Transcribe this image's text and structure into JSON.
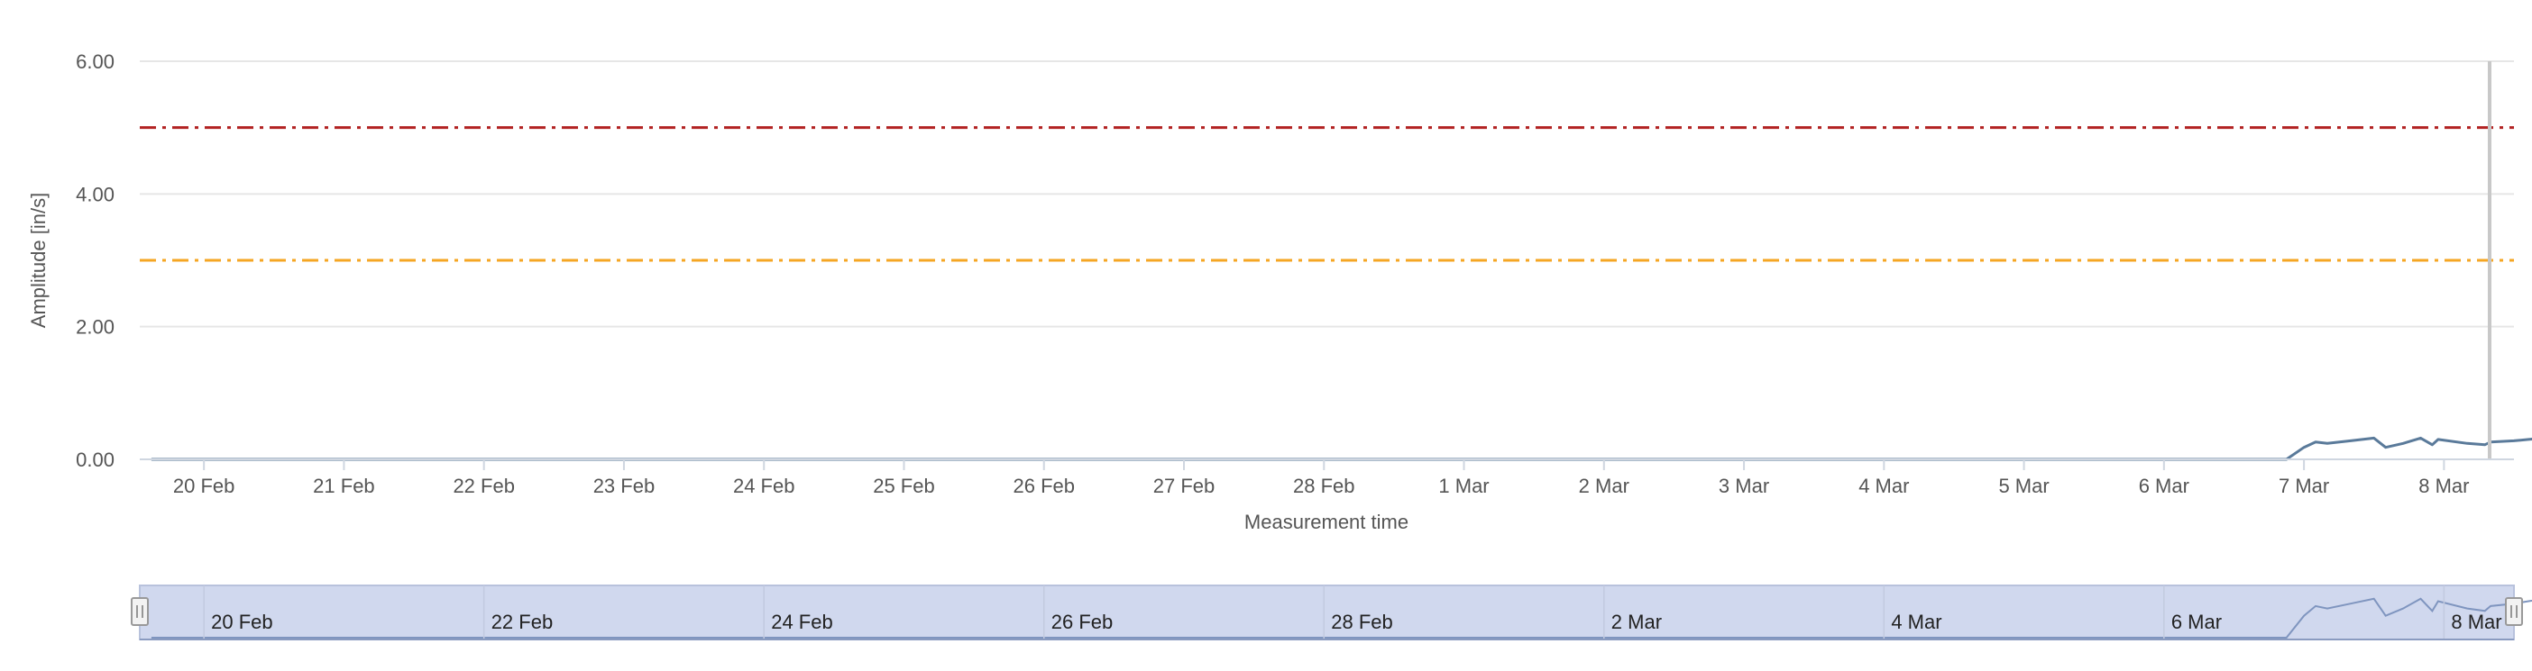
{
  "chart_data": {
    "type": "line",
    "title": "",
    "xlabel": "Measurement time",
    "ylabel": "Amplitude [in/s]",
    "ylim": [
      0,
      6
    ],
    "yticks": [
      "0.00",
      "2.00",
      "4.00",
      "6.00"
    ],
    "xlim": [
      "2022-02-19T13:00",
      "2022-03-08T12:00"
    ],
    "xtick_labels": [
      "20 Feb",
      "21 Feb",
      "22 Feb",
      "23 Feb",
      "24 Feb",
      "25 Feb",
      "26 Feb",
      "27 Feb",
      "28 Feb",
      "1 Mar",
      "2 Mar",
      "3 Mar",
      "4 Mar",
      "5 Mar",
      "6 Mar",
      "7 Mar",
      "8 Mar"
    ],
    "grid": true,
    "legend": "none",
    "thresholds": [
      {
        "value": 5.0,
        "color": "#b22222",
        "style": "dash-dot"
      },
      {
        "value": 3.0,
        "color": "#f5a623",
        "style": "dash-dot"
      }
    ],
    "series": [
      {
        "color": "#5a7a9a",
        "points": [
          [
            "2022-02-19T15:00",
            0.0
          ],
          [
            "2022-02-21T00:00",
            0.0
          ],
          [
            "2022-02-23T00:00",
            0.0
          ],
          [
            "2022-02-25T00:00",
            0.0
          ],
          [
            "2022-02-27T00:00",
            0.0
          ],
          [
            "2022-03-01T00:00",
            0.0
          ],
          [
            "2022-03-03T00:00",
            0.0
          ],
          [
            "2022-03-05T00:00",
            0.0
          ],
          [
            "2022-03-06T21:00",
            0.0
          ],
          [
            "2022-03-07T00:00",
            0.18
          ],
          [
            "2022-03-07T02:00",
            0.26
          ],
          [
            "2022-03-07T04:00",
            0.24
          ],
          [
            "2022-03-07T08:00",
            0.28
          ],
          [
            "2022-03-07T12:00",
            0.32
          ],
          [
            "2022-03-07T14:00",
            0.18
          ],
          [
            "2022-03-07T17:00",
            0.24
          ],
          [
            "2022-03-07T20:00",
            0.32
          ],
          [
            "2022-03-07T22:00",
            0.22
          ],
          [
            "2022-03-07T23:00",
            0.3
          ],
          [
            "2022-03-08T04:00",
            0.24
          ],
          [
            "2022-03-08T07:00",
            0.22
          ],
          [
            "2022-03-08T08:00",
            0.26
          ],
          [
            "2022-03-08T12:00",
            0.28
          ],
          [
            "2022-03-08T17:00",
            0.32
          ],
          [
            "2022-03-08T18:00",
            0.28
          ]
        ]
      }
    ],
    "navigator": {
      "tick_labels": [
        "20 Feb",
        "22 Feb",
        "24 Feb",
        "26 Feb",
        "28 Feb",
        "2 Mar",
        "4 Mar",
        "6 Mar",
        "8 Mar"
      ],
      "xlim": [
        "2022-02-19T13:00",
        "2022-03-08T12:00"
      ],
      "fill": "#d0d8ee"
    }
  }
}
